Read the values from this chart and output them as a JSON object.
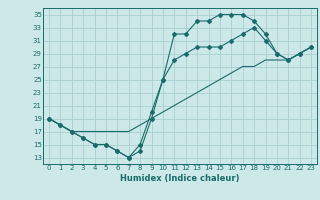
{
  "xlabel": "Humidex (Indice chaleur)",
  "bg_color": "#cde8e8",
  "grid_color": "#aacfcf",
  "line_color": "#1a6b6b",
  "spine_color": "#1a6b6b",
  "xlim": [
    -0.5,
    23.5
  ],
  "ylim": [
    12,
    36
  ],
  "xticks": [
    0,
    1,
    2,
    3,
    4,
    5,
    6,
    7,
    8,
    9,
    10,
    11,
    12,
    13,
    14,
    15,
    16,
    17,
    18,
    19,
    20,
    21,
    22,
    23
  ],
  "yticks": [
    13,
    15,
    17,
    19,
    21,
    23,
    25,
    27,
    29,
    31,
    33,
    35
  ],
  "line1_x": [
    0,
    1,
    2,
    3,
    4,
    5,
    6,
    7,
    8,
    9,
    10,
    11,
    12,
    13,
    14,
    15,
    16,
    17,
    18,
    19,
    20,
    21,
    22,
    23
  ],
  "line1_y": [
    19,
    18,
    17,
    16,
    15,
    15,
    14,
    13,
    14,
    19,
    25,
    32,
    32,
    34,
    34,
    35,
    35,
    35,
    34,
    32,
    29,
    28,
    29,
    30
  ],
  "line2_x": [
    0,
    1,
    2,
    3,
    4,
    5,
    6,
    7,
    8,
    9,
    10,
    11,
    12,
    13,
    14,
    15,
    16,
    17,
    18,
    19,
    20,
    21,
    22,
    23
  ],
  "line2_y": [
    19,
    18,
    17,
    16,
    15,
    15,
    14,
    13,
    15,
    20,
    25,
    28,
    29,
    30,
    30,
    30,
    31,
    32,
    33,
    31,
    29,
    28,
    29,
    30
  ],
  "line3_x": [
    0,
    1,
    2,
    3,
    4,
    5,
    6,
    7,
    8,
    9,
    10,
    11,
    12,
    13,
    14,
    15,
    16,
    17,
    18,
    19,
    20,
    21,
    22,
    23
  ],
  "line3_y": [
    19,
    18,
    17,
    17,
    17,
    17,
    17,
    17,
    18,
    19,
    20,
    21,
    22,
    23,
    24,
    25,
    26,
    27,
    27,
    28,
    28,
    28,
    29,
    30
  ]
}
